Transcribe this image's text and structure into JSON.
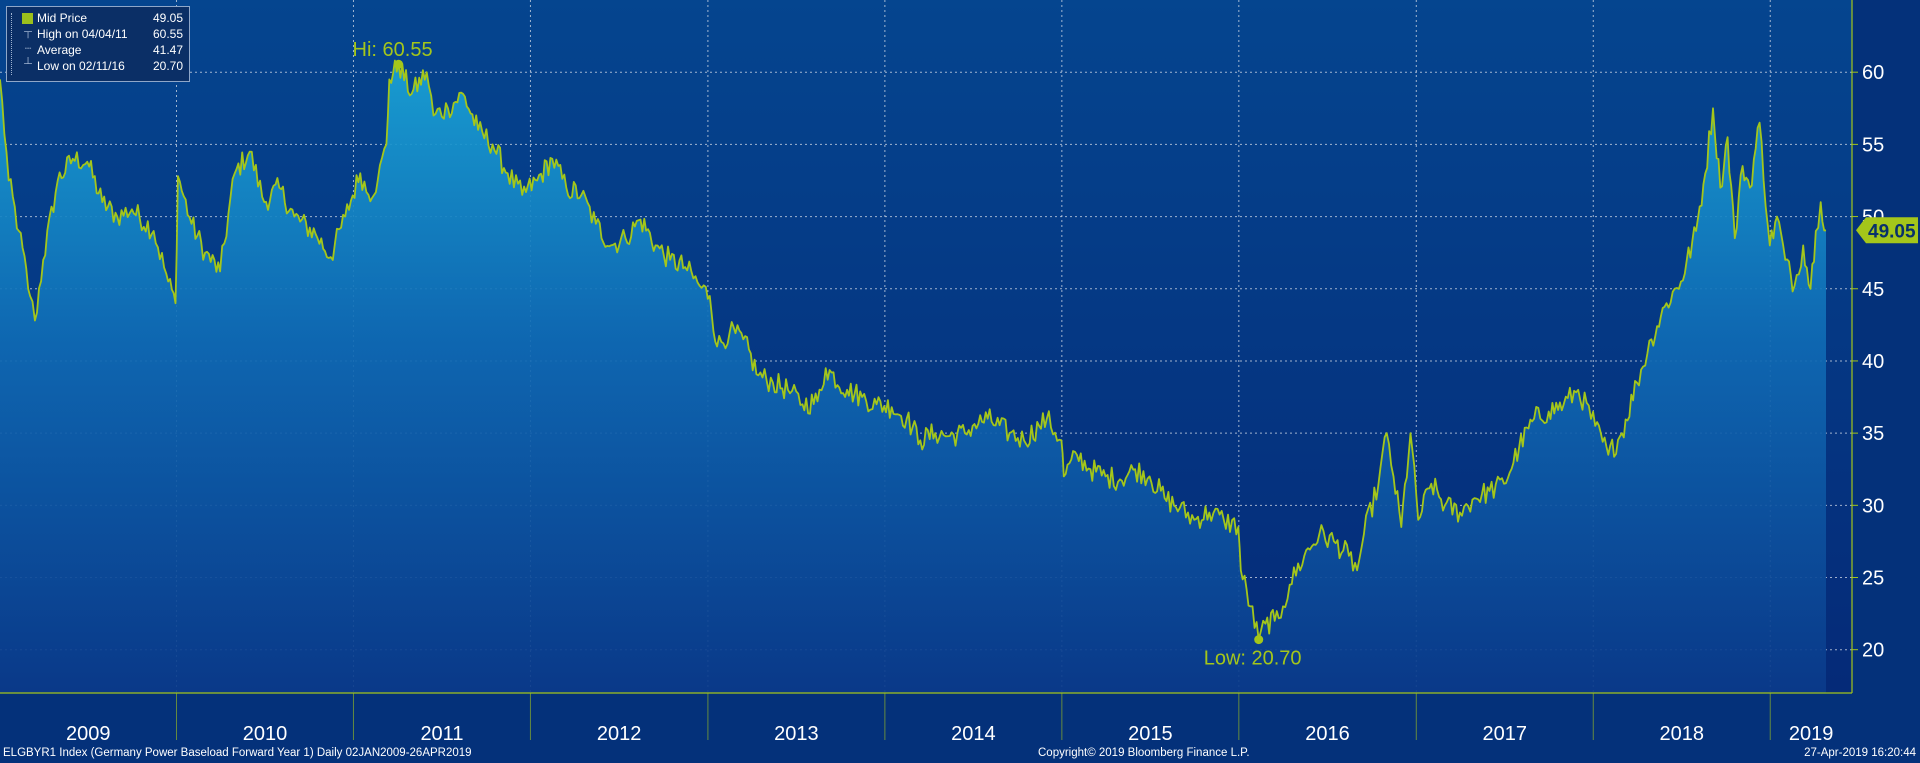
{
  "legend": {
    "items": [
      {
        "label": "Mid Price",
        "value": "49.05"
      },
      {
        "label": "High on 04/04/11",
        "value": "60.55"
      },
      {
        "label": "Average",
        "value": "41.47"
      },
      {
        "label": "Low on 02/11/16",
        "value": "20.70"
      }
    ]
  },
  "annotations": {
    "high_label": "Hi: 60.55",
    "low_label": "Low: 20.70",
    "last_price_tag": "49.05"
  },
  "footer": {
    "left": "ELGBYR1 Index (Germany Power Baseload Forward Year 1)  Daily 02JAN2009-26APR2019",
    "center": "Copyright© 2019 Bloomberg Finance L.P.",
    "right": "27-Apr-2019 16:20:44"
  },
  "colors": {
    "background": "#04317a",
    "line": "#a4c61a",
    "grid": "#d7dde8",
    "text": "#ffffff",
    "area_top": "#1b9bd0",
    "area_bottom": "#0a3a8a"
  },
  "chart_data": {
    "type": "area",
    "y_axis_position": "right",
    "grid": true,
    "legend_position": "top-left",
    "ylim": [
      17,
      65
    ],
    "yticks": [
      20,
      25,
      30,
      35,
      40,
      45,
      50,
      55,
      60
    ],
    "x_labels": [
      "2009",
      "2010",
      "2011",
      "2012",
      "2013",
      "2014",
      "2015",
      "2016",
      "2017",
      "2018",
      "2019"
    ],
    "x_range": [
      "2009-01-02",
      "2019-04-26"
    ],
    "high": {
      "date": "2011-04-04",
      "value": 60.55
    },
    "low": {
      "date": "2016-02-11",
      "value": 20.7
    },
    "series": [
      {
        "name": "Mid Price",
        "last_value": 49.05,
        "points": [
          [
            "2009-01-02",
            59.5
          ],
          [
            "2009-01-20",
            52.5
          ],
          [
            "2009-02-10",
            49.0
          ],
          [
            "2009-03-05",
            44.5
          ],
          [
            "2009-03-15",
            42.8
          ],
          [
            "2009-04-01",
            47.0
          ],
          [
            "2009-05-01",
            52.5
          ],
          [
            "2009-06-01",
            54.0
          ],
          [
            "2009-07-01",
            53.8
          ],
          [
            "2009-08-01",
            51.0
          ],
          [
            "2009-09-01",
            50.0
          ],
          [
            "2009-10-01",
            50.5
          ],
          [
            "2009-11-15",
            49.0
          ],
          [
            "2009-12-15",
            45.5
          ],
          [
            "2009-12-30",
            44.0
          ],
          [
            "2010-01-04",
            52.8
          ],
          [
            "2010-02-01",
            49.5
          ],
          [
            "2010-03-01",
            47.5
          ],
          [
            "2010-04-01",
            46.2
          ],
          [
            "2010-05-01",
            53.0
          ],
          [
            "2010-06-01",
            54.5
          ],
          [
            "2010-07-01",
            51.0
          ],
          [
            "2010-08-01",
            52.0
          ],
          [
            "2010-09-01",
            50.0
          ],
          [
            "2010-10-15",
            48.8
          ],
          [
            "2010-11-15",
            47.2
          ],
          [
            "2010-12-15",
            50.0
          ],
          [
            "2011-01-15",
            53.0
          ],
          [
            "2011-02-01",
            51.5
          ],
          [
            "2011-02-20",
            52.5
          ],
          [
            "2011-03-10",
            55.0
          ],
          [
            "2011-03-16",
            59.5
          ],
          [
            "2011-04-04",
            60.55
          ],
          [
            "2011-05-01",
            58.5
          ],
          [
            "2011-06-01",
            60.0
          ],
          [
            "2011-06-15",
            57.0
          ],
          [
            "2011-07-15",
            57.5
          ],
          [
            "2011-08-15",
            58.5
          ],
          [
            "2011-09-15",
            56.0
          ],
          [
            "2011-10-15",
            55.0
          ],
          [
            "2011-11-15",
            53.0
          ],
          [
            "2011-12-15",
            51.5
          ],
          [
            "2012-01-15",
            52.5
          ],
          [
            "2012-02-15",
            54.0
          ],
          [
            "2012-03-15",
            52.0
          ],
          [
            "2012-04-15",
            51.5
          ],
          [
            "2012-05-15",
            49.5
          ],
          [
            "2012-06-15",
            48.0
          ],
          [
            "2012-07-15",
            48.5
          ],
          [
            "2012-08-15",
            49.8
          ],
          [
            "2012-09-15",
            48.0
          ],
          [
            "2012-10-15",
            47.0
          ],
          [
            "2012-11-15",
            46.5
          ],
          [
            "2012-12-15",
            45.2
          ],
          [
            "2013-01-05",
            44.5
          ],
          [
            "2013-01-20",
            41.0
          ],
          [
            "2013-02-15",
            42.0
          ],
          [
            "2013-03-15",
            41.5
          ],
          [
            "2013-04-15",
            39.0
          ],
          [
            "2013-05-15",
            38.5
          ],
          [
            "2013-06-15",
            38.0
          ],
          [
            "2013-07-15",
            37.0
          ],
          [
            "2013-08-15",
            37.2
          ],
          [
            "2013-09-01",
            39.5
          ],
          [
            "2013-10-15",
            38.0
          ],
          [
            "2013-11-15",
            37.5
          ],
          [
            "2013-12-15",
            37.0
          ],
          [
            "2014-01-15",
            36.8
          ],
          [
            "2014-02-15",
            36.0
          ],
          [
            "2014-03-15",
            34.5
          ],
          [
            "2014-04-15",
            35.0
          ],
          [
            "2014-05-15",
            34.8
          ],
          [
            "2014-06-15",
            35.0
          ],
          [
            "2014-07-01",
            35.5
          ],
          [
            "2014-08-01",
            36.0
          ],
          [
            "2014-09-15",
            35.0
          ],
          [
            "2014-10-15",
            34.5
          ],
          [
            "2014-11-15",
            35.5
          ],
          [
            "2014-12-01",
            36.0
          ],
          [
            "2014-12-31",
            34.5
          ],
          [
            "2015-01-05",
            32.0
          ],
          [
            "2015-02-01",
            33.5
          ],
          [
            "2015-03-01",
            32.5
          ],
          [
            "2015-04-01",
            32.0
          ],
          [
            "2015-05-01",
            31.8
          ],
          [
            "2015-06-01",
            32.5
          ],
          [
            "2015-07-01",
            32.0
          ],
          [
            "2015-08-01",
            30.5
          ],
          [
            "2015-09-01",
            29.8
          ],
          [
            "2015-10-01",
            29.0
          ],
          [
            "2015-11-01",
            29.5
          ],
          [
            "2015-12-01",
            29.0
          ],
          [
            "2015-12-31",
            28.5
          ],
          [
            "2016-01-05",
            25.5
          ],
          [
            "2016-01-25",
            23.0
          ],
          [
            "2016-02-11",
            20.7
          ],
          [
            "2016-02-25",
            21.8
          ],
          [
            "2016-03-15",
            22.0
          ],
          [
            "2016-04-01",
            23.0
          ],
          [
            "2016-04-15",
            24.5
          ],
          [
            "2016-05-15",
            26.5
          ],
          [
            "2016-06-15",
            28.0
          ],
          [
            "2016-07-15",
            27.5
          ],
          [
            "2016-08-15",
            26.5
          ],
          [
            "2016-09-01",
            25.5
          ],
          [
            "2016-09-15",
            28.0
          ],
          [
            "2016-10-15",
            31.5
          ],
          [
            "2016-11-01",
            35.0
          ],
          [
            "2016-11-15",
            32.0
          ],
          [
            "2016-12-01",
            28.5
          ],
          [
            "2016-12-20",
            35.0
          ],
          [
            "2017-01-05",
            29.0
          ],
          [
            "2017-02-01",
            31.5
          ],
          [
            "2017-03-01",
            30.0
          ],
          [
            "2017-04-01",
            29.5
          ],
          [
            "2017-05-01",
            30.5
          ],
          [
            "2017-06-01",
            31.0
          ],
          [
            "2017-07-01",
            31.5
          ],
          [
            "2017-08-01",
            34.0
          ],
          [
            "2017-09-01",
            36.0
          ],
          [
            "2017-10-01",
            36.5
          ],
          [
            "2017-11-01",
            37.0
          ],
          [
            "2017-12-01",
            38.0
          ],
          [
            "2018-01-05",
            35.5
          ],
          [
            "2018-02-01",
            33.5
          ],
          [
            "2018-03-01",
            35.0
          ],
          [
            "2018-04-01",
            38.5
          ],
          [
            "2018-05-01",
            41.5
          ],
          [
            "2018-06-01",
            44.0
          ],
          [
            "2018-07-01",
            45.5
          ],
          [
            "2018-08-01",
            49.0
          ],
          [
            "2018-08-20",
            53.0
          ],
          [
            "2018-09-05",
            57.5
          ],
          [
            "2018-09-20",
            52.0
          ],
          [
            "2018-10-05",
            55.5
          ],
          [
            "2018-10-20",
            48.5
          ],
          [
            "2018-11-05",
            53.5
          ],
          [
            "2018-11-20",
            52.0
          ],
          [
            "2018-12-10",
            56.5
          ],
          [
            "2018-12-31",
            48.0
          ],
          [
            "2019-01-15",
            50.0
          ],
          [
            "2019-02-01",
            47.0
          ],
          [
            "2019-02-20",
            45.2
          ],
          [
            "2019-03-10",
            48.0
          ],
          [
            "2019-03-25",
            45.0
          ],
          [
            "2019-04-05",
            49.0
          ],
          [
            "2019-04-15",
            51.0
          ],
          [
            "2019-04-26",
            49.05
          ]
        ]
      }
    ]
  }
}
